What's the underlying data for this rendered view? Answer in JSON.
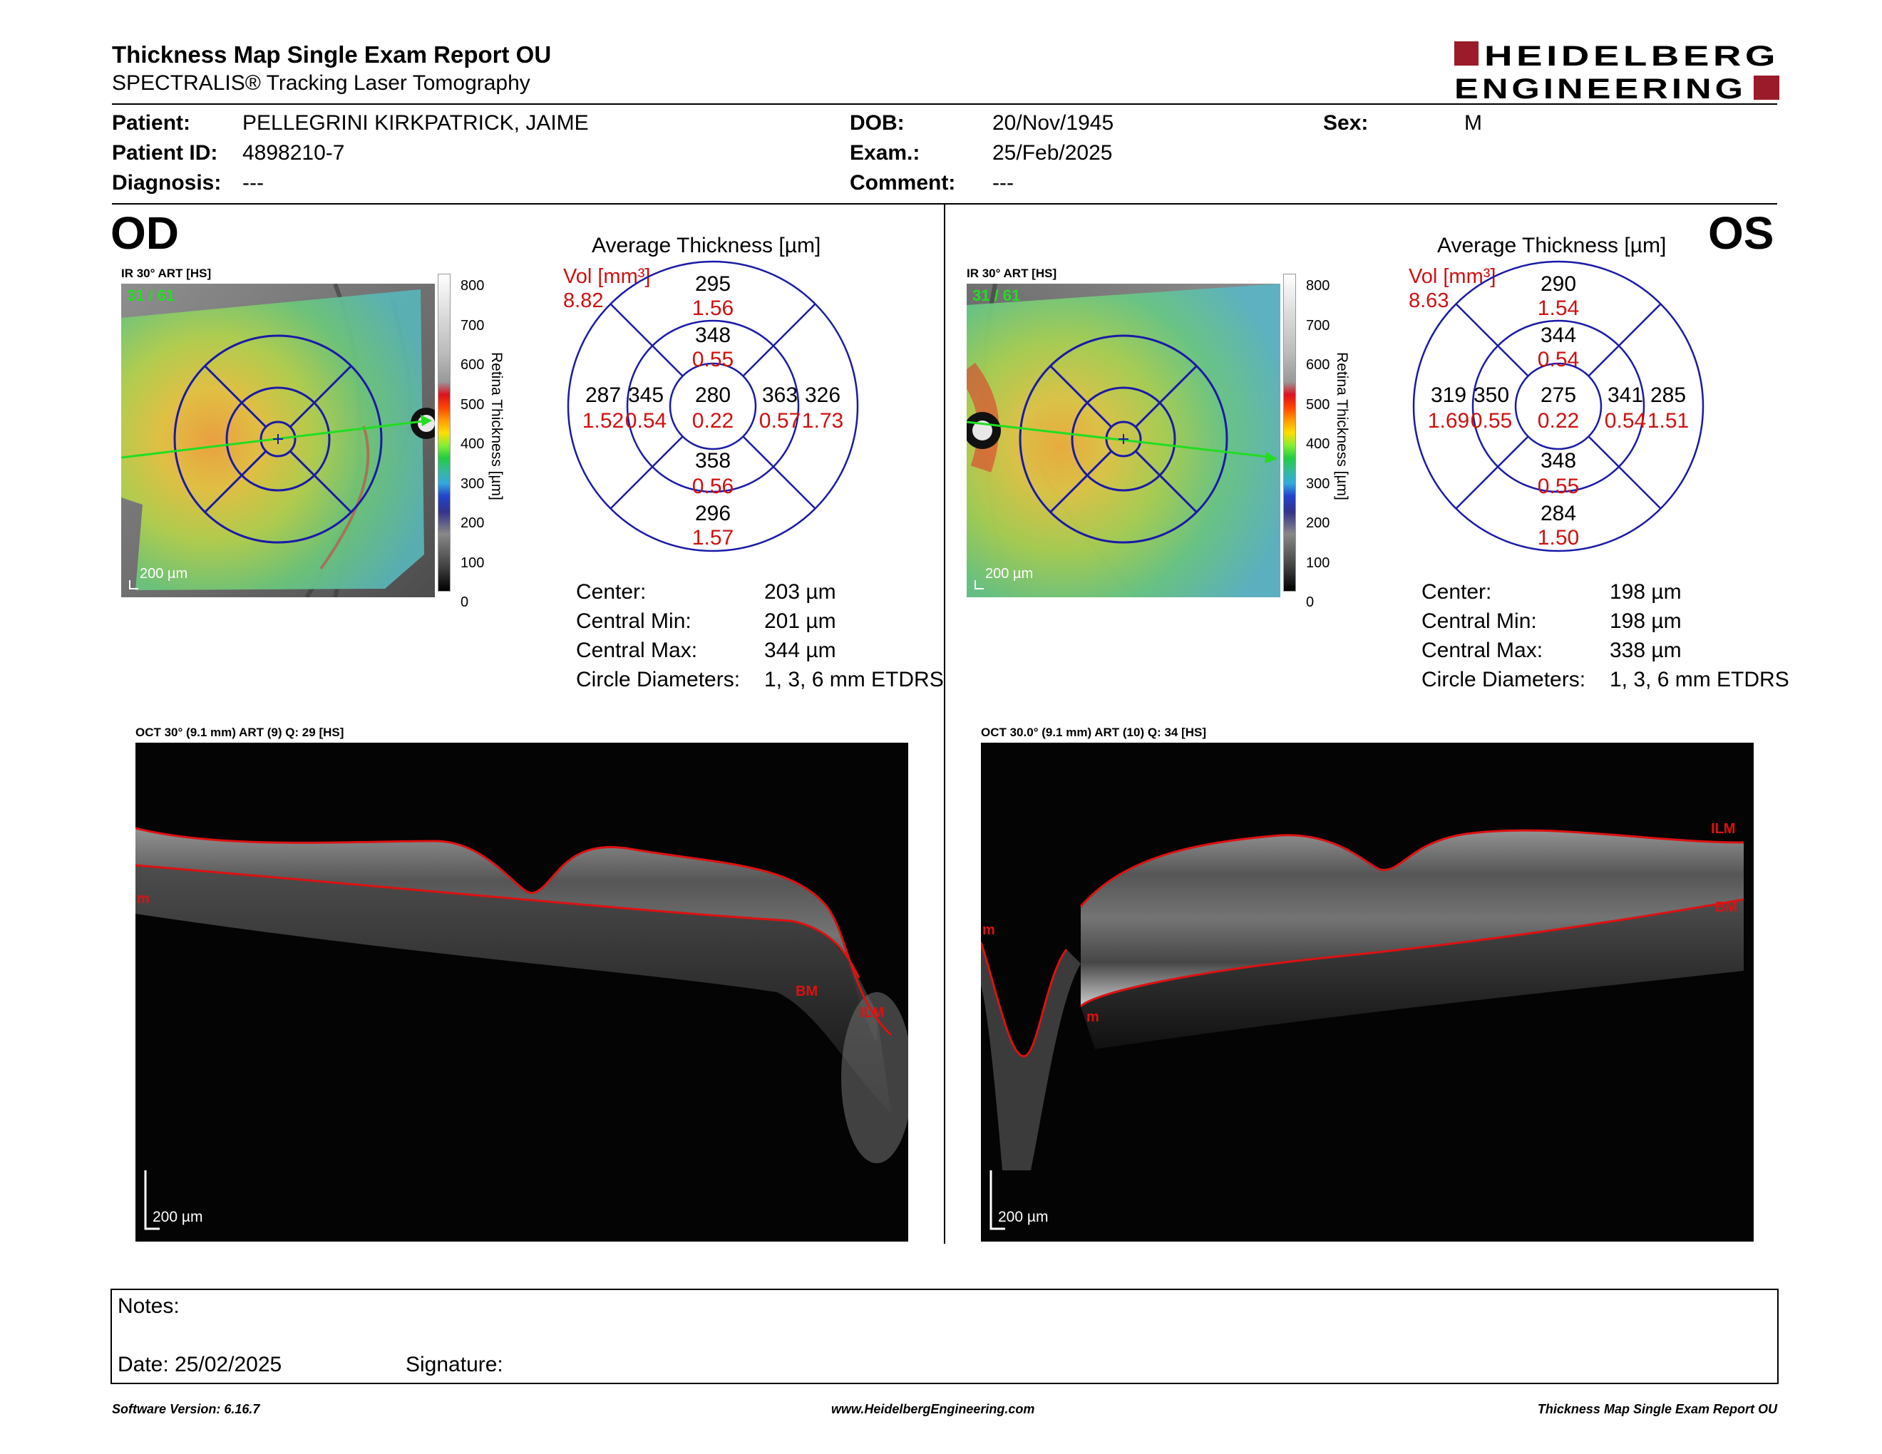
{
  "header": {
    "title": "Thickness Map Single Exam Report OU",
    "subtitle": "SPECTRALIS® Tracking Laser Tomography",
    "logo_line1": "HEIDELBERG",
    "logo_line2": "ENGINEERING"
  },
  "patient": {
    "patient_label": "Patient:",
    "patient_value": "PELLEGRINI KIRKPATRICK, JAIME",
    "id_label": "Patient ID:",
    "id_value": "4898210-7",
    "diag_label": "Diagnosis:",
    "diag_value": "---",
    "dob_label": "DOB:",
    "dob_value": "20/Nov/1945",
    "exam_label": "Exam.:",
    "exam_value": "25/Feb/2025",
    "comment_label": "Comment:",
    "comment_value": "---",
    "sex_label": "Sex:",
    "sex_value": "M"
  },
  "colorbar": {
    "ticks": [
      "800",
      "700",
      "600",
      "500",
      "400",
      "300",
      "200",
      "100",
      "0"
    ],
    "label": "Retina Thickness [µm]"
  },
  "od": {
    "eye": "OD",
    "ir_label": "IR 30° ART [HS]",
    "frame": "31 / 61",
    "scale": "200 µm",
    "avg_title": "Average Thickness [µm]",
    "vol_label": "Vol [mm³]",
    "vol_total": "8.82",
    "sectors": {
      "outer_sup": {
        "t": "295",
        "v": "1.56"
      },
      "inner_sup": {
        "t": "348",
        "v": "0.55"
      },
      "outer_temp": {
        "t": "287",
        "v": "1.52"
      },
      "inner_temp": {
        "t": "345",
        "v": "0.54"
      },
      "center": {
        "t": "280",
        "v": "0.22"
      },
      "inner_nas": {
        "t": "363",
        "v": "0.57"
      },
      "outer_nas": {
        "t": "326",
        "v": "1.73"
      },
      "inner_inf": {
        "t": "358",
        "v": "0.56"
      },
      "outer_inf": {
        "t": "296",
        "v": "1.57"
      }
    },
    "stats": [
      {
        "label": "Center:",
        "value": "203 µm"
      },
      {
        "label": "Central Min:",
        "value": "201 µm"
      },
      {
        "label": "Central Max:",
        "value": "344 µm"
      },
      {
        "label": "Circle Diameters:",
        "value": "1, 3, 6 mm ETDRS"
      }
    ],
    "oct_label": "OCT 30° (9.1 mm) ART (9) Q: 29 [HS]",
    "oct_scale": "200 µm",
    "layer_labels": {
      "ilm": "ILM",
      "bm": "BM",
      "edge": "m"
    }
  },
  "os": {
    "eye": "OS",
    "ir_label": "IR 30° ART [HS]",
    "frame": "31 / 61",
    "scale": "200 µm",
    "avg_title": "Average Thickness [µm]",
    "vol_label": "Vol [mm³]",
    "vol_total": "8.63",
    "sectors": {
      "outer_sup": {
        "t": "290",
        "v": "1.54"
      },
      "inner_sup": {
        "t": "344",
        "v": "0.54"
      },
      "outer_temp": {
        "t": "319",
        "v": "1.69"
      },
      "inner_temp": {
        "t": "350",
        "v": "0.55"
      },
      "center": {
        "t": "275",
        "v": "0.22"
      },
      "inner_nas": {
        "t": "341",
        "v": "0.54"
      },
      "outer_nas": {
        "t": "285",
        "v": "1.51"
      },
      "inner_inf": {
        "t": "348",
        "v": "0.55"
      },
      "outer_inf": {
        "t": "284",
        "v": "1.50"
      }
    },
    "stats": [
      {
        "label": "Center:",
        "value": "198 µm"
      },
      {
        "label": "Central Min:",
        "value": "198 µm"
      },
      {
        "label": "Central Max:",
        "value": "338 µm"
      },
      {
        "label": "Circle Diameters:",
        "value": "1, 3, 6 mm ETDRS"
      }
    ],
    "oct_label": "OCT 30.0° (9.1 mm) ART (10) Q: 34 [HS]",
    "oct_scale": "200 µm",
    "layer_labels": {
      "ilm": "ILM",
      "bm": "BM",
      "edge": "m",
      "edge2": "m"
    }
  },
  "notes": {
    "notes_label": "Notes:",
    "date_label": "Date: 25/02/2025",
    "signature_label": "Signature:"
  },
  "footer": {
    "software": "Software Version: 6.16.7",
    "website": "www.HeidelbergEngineering.com",
    "report": "Thickness Map Single Exam Report OU"
  },
  "colors": {
    "grid_blue": "#1a1aa8",
    "vol_red": "#d01010",
    "scan_green": "#22dd22",
    "logo_red": "#9b1b2a",
    "layer_red": "#dd1111"
  }
}
